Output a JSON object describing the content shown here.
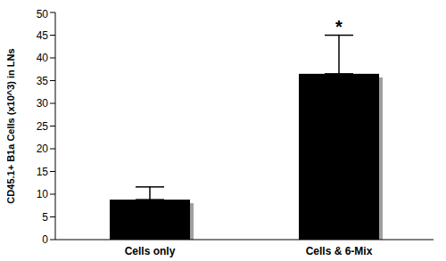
{
  "chart_data": {
    "type": "bar",
    "categories": [
      "Cells only",
      "Cells & 6-Mix"
    ],
    "values": [
      8.8,
      36.5
    ],
    "errors": [
      2.8,
      8.5
    ],
    "color": "#000000",
    "ylabel": "CD45.1+ B1a Cells (x10^3) in LNs",
    "ylim": [
      0,
      50
    ],
    "yticks": [
      0,
      5,
      10,
      15,
      20,
      25,
      30,
      35,
      40,
      45,
      50
    ],
    "grid": false,
    "annotations": [
      {
        "category": "Cells & 6-Mix",
        "text": "*"
      }
    ]
  }
}
